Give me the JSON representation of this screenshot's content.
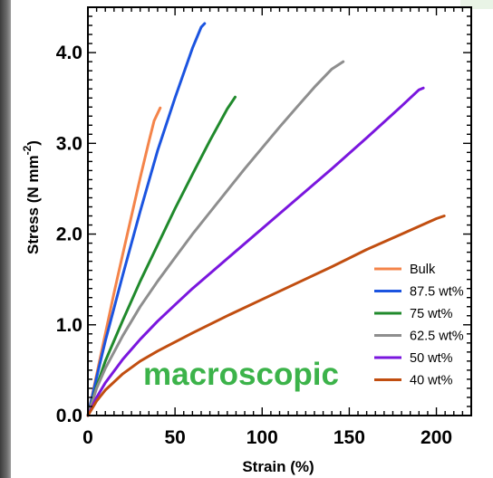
{
  "chart_data": {
    "type": "line",
    "xlabel": "Strain (%)",
    "ylabel": "Stress (N mm",
    "ylabel_superscript": "-2",
    "ylabel_suffix": ")",
    "xlim": [
      0,
      220
    ],
    "ylim": [
      0,
      4.5
    ],
    "xticks": [
      0,
      50,
      100,
      150,
      200
    ],
    "xtick_labels": [
      "0",
      "50",
      "100",
      "150",
      "200"
    ],
    "yticks": [
      0,
      1,
      2,
      3,
      4
    ],
    "ytick_labels": [
      "0.0",
      "1.0",
      "2.0",
      "3.0",
      "4.0"
    ],
    "legend_position": "bottom-right",
    "annotation": "macroscopic",
    "annotation_color": "#3cb34a",
    "grid": false,
    "series": [
      {
        "name": "Bulk",
        "color": "#f4844a",
        "x": [
          0,
          5,
          10,
          15,
          20,
          25,
          30,
          35,
          38,
          41.5
        ],
        "y": [
          0,
          0.45,
          0.9,
          1.35,
          1.78,
          2.2,
          2.62,
          3.02,
          3.25,
          3.39
        ]
      },
      {
        "name": "87.5 wt%",
        "color": "#1b54e0",
        "x": [
          0,
          5,
          10,
          20,
          30,
          40,
          50,
          60,
          65,
          67
        ],
        "y": [
          0,
          0.42,
          0.82,
          1.55,
          2.25,
          2.92,
          3.5,
          4.05,
          4.28,
          4.32
        ]
      },
      {
        "name": "75 wt%",
        "color": "#208a2c",
        "x": [
          0,
          5,
          10,
          20,
          30,
          40,
          50,
          60,
          70,
          80,
          84.5
        ],
        "y": [
          0,
          0.32,
          0.6,
          1.05,
          1.48,
          1.88,
          2.28,
          2.66,
          3.03,
          3.38,
          3.51
        ]
      },
      {
        "name": "62.5 wt%",
        "color": "#8e8e8e",
        "x": [
          0,
          5,
          10,
          20,
          30,
          40,
          50,
          60,
          70,
          80,
          90,
          100,
          110,
          120,
          130,
          140,
          146.5
        ],
        "y": [
          0,
          0.3,
          0.52,
          0.88,
          1.2,
          1.48,
          1.74,
          2.0,
          2.24,
          2.48,
          2.72,
          2.95,
          3.18,
          3.4,
          3.62,
          3.82,
          3.9
        ]
      },
      {
        "name": "50 wt%",
        "color": "#7a16de",
        "x": [
          0,
          5,
          10,
          20,
          30,
          40,
          50,
          60,
          80,
          100,
          120,
          140,
          160,
          180,
          190,
          192.5
        ],
        "y": [
          0,
          0.2,
          0.36,
          0.62,
          0.84,
          1.04,
          1.22,
          1.4,
          1.73,
          2.06,
          2.39,
          2.72,
          3.06,
          3.41,
          3.59,
          3.61
        ]
      },
      {
        "name": "40 wt%",
        "color": "#c14e10",
        "x": [
          0,
          5,
          10,
          20,
          30,
          40,
          60,
          80,
          100,
          120,
          140,
          160,
          180,
          200,
          204.5
        ],
        "y": [
          0,
          0.16,
          0.28,
          0.46,
          0.6,
          0.71,
          0.91,
          1.1,
          1.28,
          1.46,
          1.64,
          1.83,
          2.0,
          2.17,
          2.2
        ]
      }
    ]
  }
}
